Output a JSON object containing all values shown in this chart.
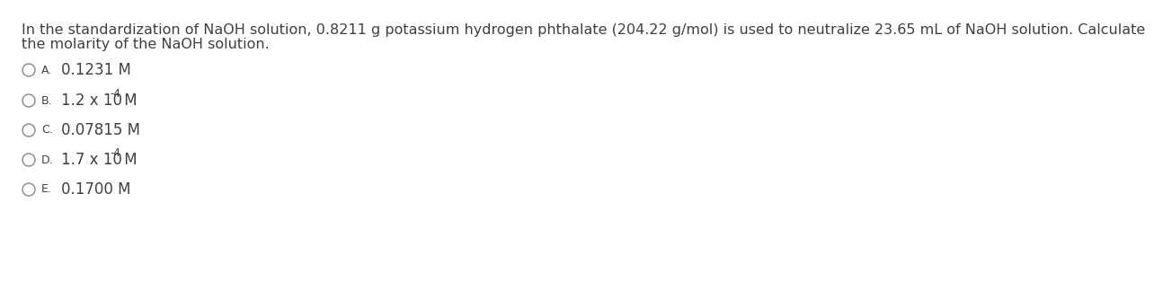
{
  "background_color": "#ffffff",
  "text_color": "#404040",
  "question_text_line1": "In the standardization of NaOH solution, 0.8211 g potassium hydrogen phthalate (204.22 g/mol) is used to neutralize 23.65 mL of NaOH solution. Calculate",
  "question_text_line2": "the molarity of the NaOH solution.",
  "options": [
    {
      "label": "A.",
      "text": "0.1231 M",
      "has_super": false,
      "base": "",
      "superscript": "",
      "suffix": ""
    },
    {
      "label": "B.",
      "text": "1.2 x 10",
      "has_super": true,
      "base": "1.2 x 10",
      "superscript": "-4",
      "suffix": " M"
    },
    {
      "label": "C.",
      "text": "0.07815 M",
      "has_super": false,
      "base": "",
      "superscript": "",
      "suffix": ""
    },
    {
      "label": "D.",
      "text": "1.7 x 10",
      "has_super": true,
      "base": "1.7 x 10",
      "superscript": "-4",
      "suffix": " M"
    },
    {
      "label": "E.",
      "text": "0.1700 M",
      "has_super": false,
      "base": "",
      "superscript": "",
      "suffix": ""
    }
  ],
  "font_size_question": 11.5,
  "font_size_options": 12,
  "font_size_superscript": 8.5,
  "font_size_label": 9
}
